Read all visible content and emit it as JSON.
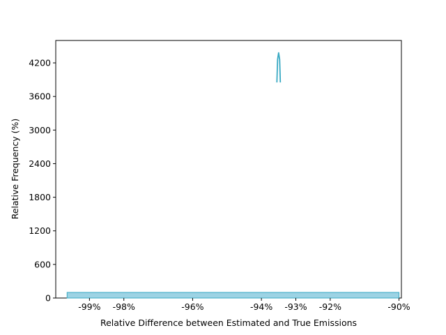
{
  "chart_data": {
    "type": "area",
    "title": "",
    "xlabel": "Relative Difference between Estimated and True Emissions",
    "ylabel": "Relative Frequency (%)",
    "xlim": [
      -0.9998,
      -0.8993
    ],
    "ylim": [
      0,
      4600
    ],
    "x_tick_values": [
      -0.99,
      -0.98,
      -0.96,
      -0.94,
      -0.93,
      -0.92,
      -0.9
    ],
    "x_tick_labels": [
      "-99%",
      "-98%",
      "-96%",
      "-94%",
      "-93%",
      "-92%",
      "-90%"
    ],
    "y_tick_values": [
      0,
      600,
      1200,
      1800,
      2400,
      3000,
      3600,
      4200
    ],
    "y_tick_labels": [
      "0",
      "600",
      "1200",
      "1800",
      "2400",
      "3000",
      "3600",
      "4200"
    ],
    "grid": false,
    "legend": "none",
    "series": [
      {
        "kind": "histogram",
        "x_start": -0.9965,
        "x_end": -0.9,
        "value": 100,
        "fill_color": "#9dd3e4",
        "edge_color": "#38a9c3"
      },
      {
        "kind": "density-curve",
        "x": [
          -0.9355,
          -0.9353,
          -0.935,
          -0.9347,
          -0.9345
        ],
        "y": [
          3850,
          4260,
          4380,
          4260,
          3850
        ],
        "color": "#38a9c3"
      }
    ]
  }
}
